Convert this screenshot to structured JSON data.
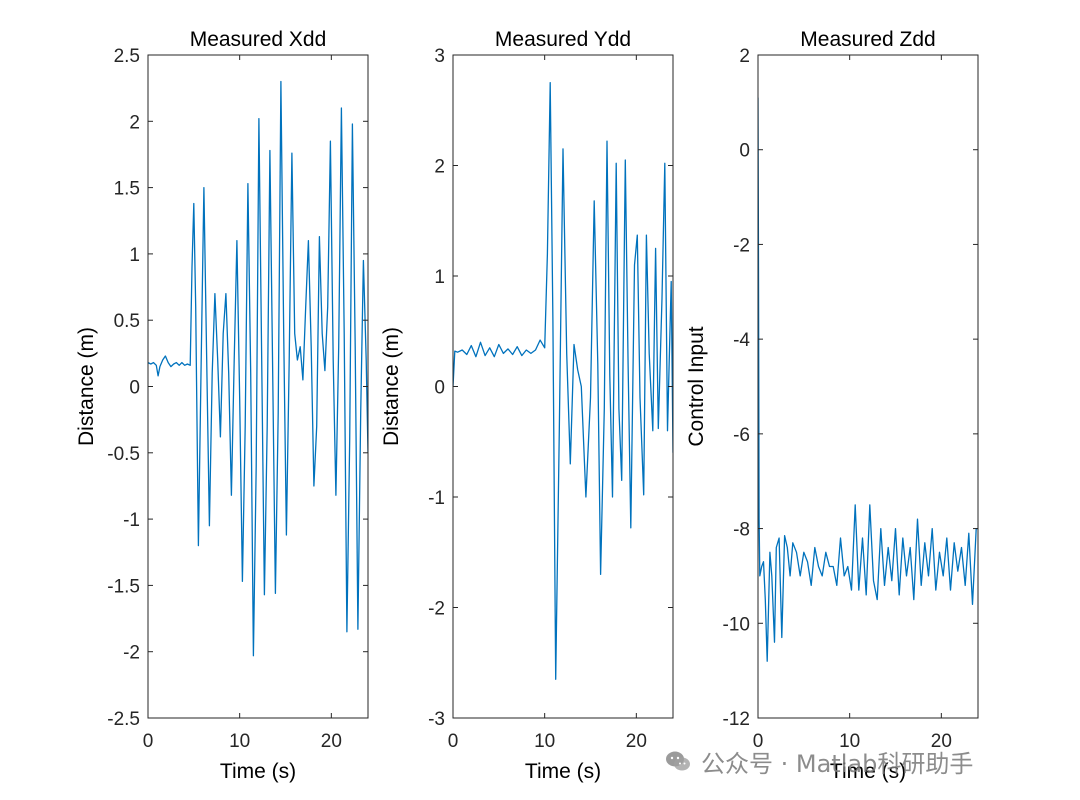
{
  "chart_data": [
    {
      "type": "line",
      "title": "Measured Xdd",
      "xlabel": "Time (s)",
      "ylabel": "Distance (m)",
      "xlim": [
        0,
        24
      ],
      "ylim": [
        -2.5,
        2.5
      ],
      "xticks": [
        0,
        10,
        20
      ],
      "xtick_labels": [
        "0",
        "10",
        "20"
      ],
      "yticks": [
        -2.5,
        -2,
        -1.5,
        -1,
        -0.5,
        0,
        0.5,
        1,
        1.5,
        2,
        2.5
      ],
      "ytick_labels": [
        "-2.5",
        "-2",
        "-1.5",
        "-1",
        "-0.5",
        "0",
        "0.5",
        "1",
        "1.5",
        "2",
        "2.5"
      ],
      "series": [
        {
          "color": "#0072BD",
          "x": [
            0,
            0.3,
            0.6,
            0.9,
            1.1,
            1.3,
            1.6,
            1.9,
            2.2,
            2.5,
            2.8,
            3.1,
            3.4,
            3.7,
            4.0,
            4.3,
            4.6,
            4.8,
            5.0,
            5.2,
            5.5,
            5.8,
            6.1,
            6.4,
            6.7,
            7.0,
            7.3,
            7.6,
            7.9,
            8.2,
            8.5,
            8.8,
            9.1,
            9.4,
            9.7,
            10.0,
            10.3,
            10.6,
            10.9,
            11.2,
            11.5,
            11.8,
            12.1,
            12.4,
            12.7,
            13.0,
            13.3,
            13.6,
            13.9,
            14.2,
            14.5,
            14.8,
            15.1,
            15.4,
            15.7,
            16.0,
            16.3,
            16.6,
            16.9,
            17.2,
            17.5,
            17.8,
            18.1,
            18.4,
            18.7,
            19.0,
            19.3,
            19.6,
            19.9,
            20.2,
            20.5,
            20.8,
            21.1,
            21.4,
            21.7,
            22.0,
            22.3,
            22.6,
            22.9,
            23.2,
            23.5,
            23.8,
            24.0
          ],
          "y": [
            0.18,
            0.17,
            0.18,
            0.16,
            0.08,
            0.15,
            0.2,
            0.23,
            0.18,
            0.15,
            0.17,
            0.18,
            0.16,
            0.18,
            0.16,
            0.17,
            0.16,
            0.9,
            1.38,
            0.6,
            -1.2,
            0.2,
            1.5,
            0.2,
            -1.05,
            0.1,
            0.7,
            0.2,
            -0.38,
            0.4,
            0.7,
            0.1,
            -0.82,
            0.2,
            1.1,
            -0.1,
            -1.47,
            -0.3,
            1.53,
            0.1,
            -2.03,
            -0.6,
            2.02,
            0.2,
            -1.57,
            -0.3,
            1.78,
            0.1,
            -1.56,
            -0.2,
            2.3,
            0.4,
            -1.12,
            0.2,
            1.76,
            0.4,
            0.2,
            0.3,
            0.05,
            0.6,
            1.1,
            0.3,
            -0.75,
            -0.3,
            1.13,
            0.4,
            0.12,
            0.6,
            1.85,
            0.2,
            -0.82,
            0.3,
            2.1,
            0.4,
            -1.85,
            -0.4,
            1.98,
            0.3,
            -1.83,
            -0.2,
            0.95,
            0.2,
            -0.5
          ]
        }
      ]
    },
    {
      "type": "line",
      "title": "Measured Ydd",
      "xlabel": "Time (s)",
      "ylabel": "Distance (m)",
      "xlim": [
        0,
        24
      ],
      "ylim": [
        -3,
        3
      ],
      "xticks": [
        0,
        10,
        20
      ],
      "xtick_labels": [
        "0",
        "10",
        "20"
      ],
      "yticks": [
        -3,
        -2,
        -1,
        0,
        1,
        2,
        3
      ],
      "ytick_labels": [
        "-3",
        "-2",
        "-1",
        "0",
        "1",
        "2",
        "3"
      ],
      "series": [
        {
          "color": "#0072BD",
          "x": [
            0,
            0.2,
            0.5,
            1.0,
            1.5,
            2.0,
            2.5,
            3.0,
            3.5,
            4.0,
            4.5,
            5.0,
            5.5,
            6.0,
            6.5,
            7.0,
            7.5,
            8.0,
            8.5,
            9.0,
            9.5,
            10.0,
            10.3,
            10.6,
            10.9,
            11.2,
            11.6,
            12.0,
            12.4,
            12.8,
            13.2,
            13.6,
            14.0,
            14.5,
            15.0,
            15.4,
            15.8,
            16.1,
            16.5,
            16.8,
            17.1,
            17.4,
            17.8,
            18.1,
            18.4,
            18.8,
            19.1,
            19.4,
            19.8,
            20.1,
            20.4,
            20.8,
            21.1,
            21.4,
            21.8,
            22.1,
            22.4,
            22.8,
            23.1,
            23.4,
            23.8,
            24.0
          ],
          "y": [
            0.0,
            0.32,
            0.31,
            0.33,
            0.29,
            0.37,
            0.27,
            0.4,
            0.28,
            0.35,
            0.27,
            0.38,
            0.3,
            0.34,
            0.29,
            0.36,
            0.28,
            0.33,
            0.3,
            0.33,
            0.42,
            0.35,
            1.2,
            2.75,
            0.6,
            -2.65,
            -0.4,
            2.15,
            0.3,
            -0.7,
            0.38,
            0.15,
            0.0,
            -1.0,
            -0.1,
            1.68,
            0.2,
            -1.7,
            -0.2,
            2.22,
            0.1,
            -1.0,
            2.02,
            -0.2,
            -0.85,
            2.05,
            0.2,
            -1.28,
            1.1,
            1.37,
            -0.1,
            -0.98,
            1.37,
            0.3,
            -0.4,
            1.25,
            -0.38,
            0.8,
            2.02,
            -0.4,
            0.95,
            -0.6
          ]
        }
      ]
    },
    {
      "type": "line",
      "title": "Measured Zdd",
      "xlabel": "Time (s)",
      "ylabel": "Control Input",
      "xlim": [
        0,
        24
      ],
      "ylim": [
        -12,
        2
      ],
      "xticks": [
        0,
        10,
        20
      ],
      "xtick_labels": [
        "0",
        "10",
        "20"
      ],
      "yticks": [
        -12,
        -10,
        -8,
        -6,
        -4,
        -2,
        0,
        2
      ],
      "ytick_labels": [
        "-12",
        "-10",
        "-8",
        "-6",
        "-4",
        "-2",
        "0",
        "2"
      ],
      "series": [
        {
          "color": "#0072BD",
          "x": [
            0,
            0.05,
            0.12,
            0.2,
            0.4,
            0.6,
            0.8,
            1.0,
            1.3,
            1.5,
            1.8,
            2.0,
            2.3,
            2.6,
            2.9,
            3.2,
            3.5,
            3.8,
            4.2,
            4.6,
            5.0,
            5.4,
            5.8,
            6.2,
            6.6,
            7.0,
            7.4,
            7.8,
            8.2,
            8.6,
            9.0,
            9.4,
            9.8,
            10.2,
            10.6,
            11.0,
            11.4,
            11.8,
            12.2,
            12.6,
            13.0,
            13.4,
            13.8,
            14.2,
            14.6,
            15.0,
            15.4,
            15.8,
            16.2,
            16.6,
            17.0,
            17.4,
            17.8,
            18.2,
            18.6,
            19.0,
            19.4,
            19.8,
            20.2,
            20.6,
            21.0,
            21.4,
            21.8,
            22.2,
            22.6,
            23.0,
            23.4,
            23.8,
            24.0
          ],
          "y": [
            1.1,
            -2.5,
            -7.8,
            -9.0,
            -8.8,
            -8.7,
            -9.5,
            -10.8,
            -8.5,
            -9.0,
            -10.4,
            -8.4,
            -8.2,
            -10.3,
            -8.15,
            -8.4,
            -9.0,
            -8.3,
            -8.5,
            -9.0,
            -8.5,
            -8.7,
            -9.2,
            -8.4,
            -8.8,
            -9.0,
            -8.5,
            -8.8,
            -8.8,
            -9.2,
            -8.2,
            -9.0,
            -8.8,
            -9.3,
            -7.5,
            -9.3,
            -8.2,
            -9.4,
            -7.5,
            -9.1,
            -9.5,
            -8.0,
            -9.2,
            -8.4,
            -9.1,
            -8.0,
            -9.4,
            -8.2,
            -9.0,
            -8.4,
            -9.5,
            -7.8,
            -9.2,
            -8.3,
            -9.0,
            -8.0,
            -9.3,
            -8.5,
            -9.0,
            -8.2,
            -9.3,
            -8.3,
            -8.9,
            -8.4,
            -9.2,
            -8.1,
            -9.6,
            -8.0,
            -8.0
          ]
        }
      ]
    }
  ],
  "watermark": {
    "text": "公众号 · Matlab科研助手",
    "icon": "wechat-icon"
  }
}
